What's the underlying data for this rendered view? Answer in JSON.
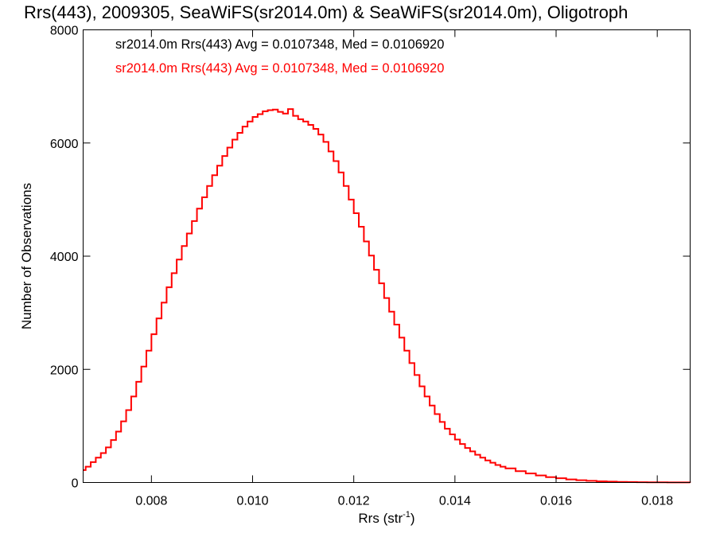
{
  "chart_data": {
    "type": "histogram",
    "title": "Rrs(443), 2009305, SeaWiFS(sr2014.0m) & SeaWiFS(sr2014.0m), Oligotroph",
    "xlabel": "Rrs (str",
    "xlabel_sup": "-1",
    "xlabel_close": ")",
    "ylabel": "Number of Observations",
    "xlim": [
      0.00665,
      0.01865
    ],
    "ylim": [
      0,
      8000
    ],
    "x_ticks": [
      0.008,
      0.01,
      0.012,
      0.014,
      0.016,
      0.018
    ],
    "x_tick_labels": [
      "0.008",
      "0.010",
      "0.012",
      "0.014",
      "0.016",
      "0.018"
    ],
    "y_ticks": [
      0,
      2000,
      4000,
      6000,
      8000
    ],
    "y_tick_labels": [
      "0",
      "2000",
      "4000",
      "6000",
      "8000"
    ],
    "grid": false,
    "legend_position": "top-left",
    "annotations": [
      {
        "text": "sr2014.0m Rrs(443) Avg = 0.0107348, Med = 0.0106920",
        "color": "#000000"
      },
      {
        "text": "sr2014.0m Rrs(443) Avg = 0.0107348, Med = 0.0106920",
        "color": "#ff0000"
      }
    ],
    "series": [
      {
        "color": "#ff0000",
        "style": "step",
        "x": [
          0.00665,
          0.0067,
          0.0068,
          0.0069,
          0.007,
          0.0071,
          0.0072,
          0.0073,
          0.0074,
          0.0075,
          0.0076,
          0.0077,
          0.0078,
          0.0079,
          0.008,
          0.0081,
          0.0082,
          0.0083,
          0.0084,
          0.0085,
          0.0086,
          0.0087,
          0.0088,
          0.0089,
          0.009,
          0.0091,
          0.0092,
          0.0093,
          0.0094,
          0.0095,
          0.0096,
          0.0097,
          0.0098,
          0.0099,
          0.01,
          0.0101,
          0.0102,
          0.0103,
          0.0104,
          0.0105,
          0.0106,
          0.0107,
          0.0108,
          0.0109,
          0.011,
          0.0111,
          0.0112,
          0.0113,
          0.0114,
          0.0115,
          0.0116,
          0.0117,
          0.0118,
          0.0119,
          0.012,
          0.0121,
          0.0122,
          0.0123,
          0.0124,
          0.0125,
          0.0126,
          0.0127,
          0.0128,
          0.0129,
          0.013,
          0.0131,
          0.0132,
          0.0133,
          0.0134,
          0.0135,
          0.0136,
          0.0137,
          0.0138,
          0.0139,
          0.014,
          0.0141,
          0.0142,
          0.0143,
          0.0144,
          0.0145,
          0.0146,
          0.0147,
          0.0148,
          0.0149,
          0.015,
          0.0152,
          0.0154,
          0.0156,
          0.0158,
          0.016,
          0.0162,
          0.0164,
          0.0166,
          0.0168,
          0.017,
          0.0172,
          0.0174,
          0.0176,
          0.0178,
          0.018,
          0.0182,
          0.0184,
          0.01865
        ],
        "y": [
          220,
          280,
          360,
          440,
          520,
          620,
          750,
          900,
          1080,
          1280,
          1520,
          1780,
          2050,
          2330,
          2620,
          2900,
          3180,
          3450,
          3700,
          3940,
          4180,
          4400,
          4620,
          4840,
          5040,
          5240,
          5430,
          5600,
          5770,
          5920,
          6060,
          6180,
          6290,
          6380,
          6460,
          6510,
          6560,
          6580,
          6590,
          6550,
          6520,
          6600,
          6480,
          6420,
          6380,
          6320,
          6250,
          6150,
          6020,
          5850,
          5680,
          5480,
          5240,
          5000,
          4760,
          4520,
          4260,
          4010,
          3760,
          3520,
          3260,
          3020,
          2790,
          2560,
          2330,
          2110,
          1900,
          1700,
          1520,
          1360,
          1210,
          1070,
          950,
          850,
          760,
          680,
          610,
          550,
          490,
          440,
          390,
          350,
          310,
          280,
          250,
          200,
          160,
          125,
          95,
          75,
          55,
          40,
          30,
          22,
          16,
          11,
          8,
          6,
          4,
          3,
          2,
          1,
          0
        ]
      }
    ]
  }
}
